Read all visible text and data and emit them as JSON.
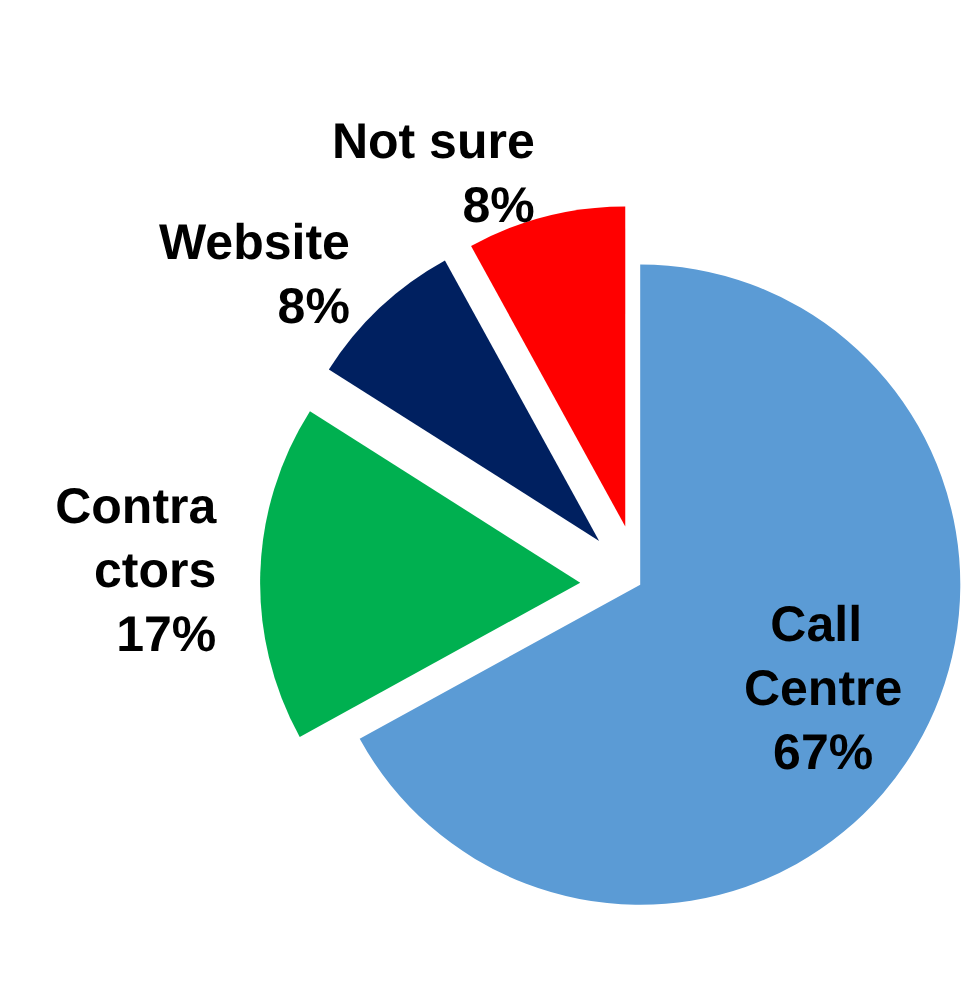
{
  "chart_data": {
    "type": "pie",
    "categories": [
      "Call Centre",
      "Contractors",
      "Website",
      "Not sure"
    ],
    "values": [
      67,
      17,
      8,
      8
    ],
    "value_labels": [
      "67%",
      "17%",
      "8%",
      "8%"
    ],
    "colors": [
      "#5b9bd5",
      "#00b050",
      "#002060",
      "#ff0000"
    ],
    "legend": false
  }
}
